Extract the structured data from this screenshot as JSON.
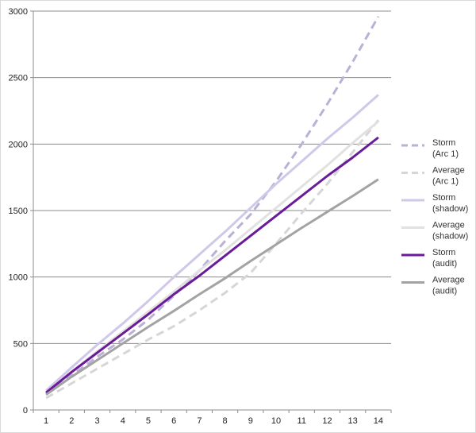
{
  "chart_data": {
    "type": "line",
    "title": "",
    "xlabel": "",
    "ylabel": "",
    "x": [
      1,
      2,
      3,
      4,
      5,
      6,
      7,
      8,
      9,
      10,
      11,
      12,
      13,
      14
    ],
    "xlim": [
      0.5,
      14.5
    ],
    "ylim": [
      0,
      3000
    ],
    "y_ticks": [
      0,
      500,
      1000,
      1500,
      2000,
      2500,
      3000
    ],
    "x_ticks": [
      1,
      2,
      3,
      4,
      5,
      6,
      7,
      8,
      9,
      10,
      11,
      12,
      13,
      14
    ],
    "grid": "horizontal",
    "legend_position": "right",
    "series": [
      {
        "name": "Storm (Arc 1)",
        "legend_lines": [
          "Storm",
          "(Arc 1)"
        ],
        "color": "#b9b1d6",
        "dash": "10,6",
        "width": 3,
        "values": [
          120,
          260,
          400,
          530,
          680,
          860,
          1050,
          1270,
          1470,
          1720,
          2000,
          2300,
          2620,
          2960
        ]
      },
      {
        "name": "Average (Arc 1)",
        "legend_lines": [
          "Average",
          "(Arc 1)"
        ],
        "color": "#d6d6d6",
        "dash": "10,6",
        "width": 3,
        "values": [
          90,
          200,
          310,
          420,
          530,
          630,
          750,
          880,
          1030,
          1250,
          1480,
          1700,
          1940,
          2180
        ]
      },
      {
        "name": "Storm (shadow)",
        "legend_lines": [
          "Storm",
          "(shadow)"
        ],
        "color": "#cfc8e8",
        "dash": "",
        "width": 3,
        "values": [
          145,
          320,
          490,
          650,
          820,
          1000,
          1170,
          1340,
          1520,
          1700,
          1870,
          2040,
          2200,
          2370
        ]
      },
      {
        "name": "Average (shadow)",
        "legend_lines": [
          "Average",
          "(shadow)"
        ],
        "color": "#e1e1e1",
        "dash": "",
        "width": 3,
        "values": [
          130,
          290,
          440,
          590,
          740,
          890,
          1050,
          1200,
          1360,
          1520,
          1680,
          1840,
          2010,
          2170
        ]
      },
      {
        "name": "Storm (audit)",
        "legend_lines": [
          "Storm",
          "(audit)"
        ],
        "color": "#6a1b9a",
        "dash": "",
        "width": 3,
        "values": [
          130,
          285,
          430,
          575,
          720,
          870,
          1010,
          1160,
          1310,
          1460,
          1610,
          1760,
          1900,
          2050
        ]
      },
      {
        "name": "Average (audit)",
        "legend_lines": [
          "Average",
          "(audit)"
        ],
        "color": "#a3a3a3",
        "dash": "",
        "width": 3,
        "values": [
          115,
          250,
          375,
          500,
          625,
          745,
          870,
          990,
          1120,
          1245,
          1370,
          1490,
          1610,
          1735
        ]
      }
    ]
  }
}
